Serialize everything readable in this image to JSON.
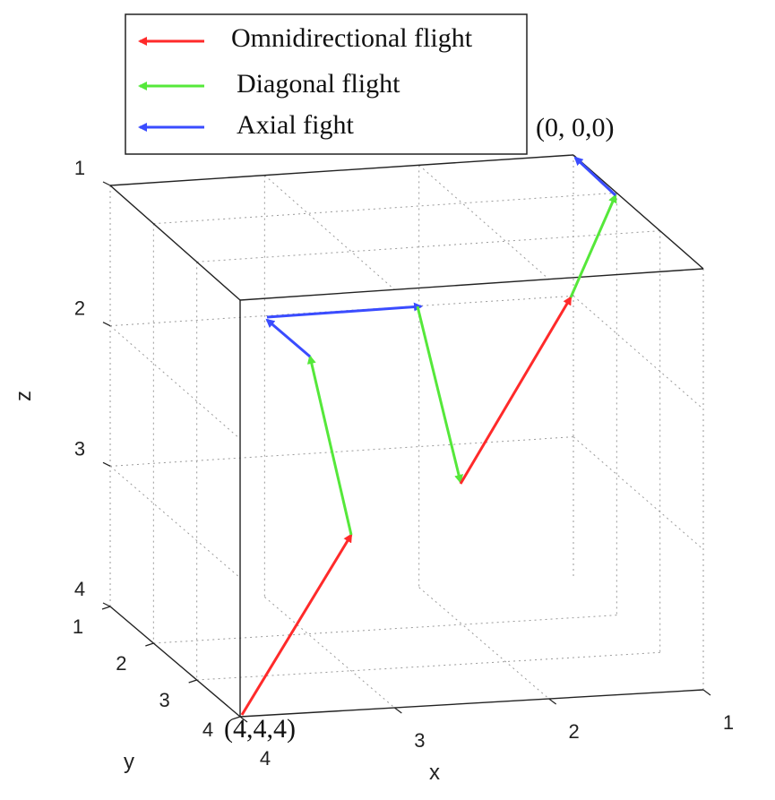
{
  "chart_data": {
    "type": "line",
    "title": "",
    "xlabel": "x",
    "ylabel": "y",
    "zlabel": "z",
    "x_ticks": [
      "1",
      "2",
      "3",
      "4"
    ],
    "y_ticks": [
      "1",
      "2",
      "3",
      "4"
    ],
    "z_ticks": [
      "1",
      "2",
      "3",
      "4"
    ],
    "xlim": [
      1,
      4
    ],
    "ylim": [
      1,
      4
    ],
    "zlim": [
      1,
      4
    ],
    "grid": true,
    "legend_position": "top-left",
    "series": [
      {
        "name": "Omnidirectional flight",
        "color": "#ff2a2a"
      },
      {
        "name": "Diagonal flight",
        "color": "#55e83a"
      },
      {
        "name": "Axial fight",
        "color": "#3a4cff"
      }
    ],
    "annotations": [
      {
        "id": "start",
        "text": "(4,4,4)"
      },
      {
        "id": "end",
        "text": "(0, 0,0)"
      }
    ]
  }
}
